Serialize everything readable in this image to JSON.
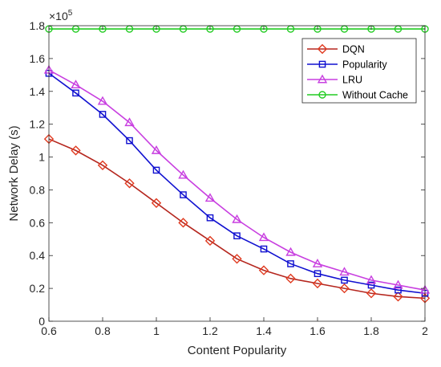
{
  "chart_data": {
    "type": "line",
    "xlabel": "Content Popularity",
    "ylabel": "Network Delay (s)",
    "y_multiplier_label": "×10",
    "y_multiplier_exponent": "5",
    "xlim": [
      0.6,
      2
    ],
    "ylim": [
      0,
      1.8
    ],
    "xticks": [
      0.6,
      0.8,
      1,
      1.2,
      1.4,
      1.6,
      1.8,
      2
    ],
    "xtick_labels": [
      "0.6",
      "0.8",
      "1",
      "1.2",
      "1.4",
      "1.6",
      "1.8",
      "2"
    ],
    "yticks": [
      0,
      0.2,
      0.4,
      0.6,
      0.8,
      1,
      1.2,
      1.4,
      1.6,
      1.8
    ],
    "ytick_labels": [
      "0",
      "0.2",
      "0.4",
      "0.6",
      "0.8",
      "1",
      "1.2",
      "1.4",
      "1.6",
      "1.8"
    ],
    "grid": false,
    "legend_position": "top-right",
    "x": [
      0.6,
      0.7,
      0.8,
      0.9,
      1.0,
      1.1,
      1.2,
      1.3,
      1.4,
      1.5,
      1.6,
      1.7,
      1.8,
      1.9,
      2.0
    ],
    "series": [
      {
        "name": "DQN",
        "color": "#b5261e",
        "marker_color": "#e03a1f",
        "marker": "diamond",
        "values": [
          1.11,
          1.04,
          0.95,
          0.84,
          0.72,
          0.6,
          0.49,
          0.38,
          0.31,
          0.26,
          0.23,
          0.2,
          0.17,
          0.15,
          0.14
        ]
      },
      {
        "name": "Popularity",
        "color": "#1010d0",
        "marker_color": "#1010d0",
        "marker": "square",
        "values": [
          1.51,
          1.39,
          1.26,
          1.1,
          0.92,
          0.77,
          0.63,
          0.52,
          0.44,
          0.35,
          0.29,
          0.25,
          0.22,
          0.19,
          0.17
        ]
      },
      {
        "name": "LRU",
        "color": "#c83fe0",
        "marker_color": "#c83fe0",
        "marker": "triangle",
        "values": [
          1.53,
          1.44,
          1.34,
          1.21,
          1.04,
          0.89,
          0.75,
          0.62,
          0.51,
          0.42,
          0.35,
          0.3,
          0.25,
          0.22,
          0.19
        ]
      },
      {
        "name": "Without Cache",
        "color": "#22cc22",
        "marker_color": "#22cc22",
        "marker": "circle",
        "values": [
          1.78,
          1.78,
          1.78,
          1.78,
          1.78,
          1.78,
          1.78,
          1.78,
          1.78,
          1.78,
          1.78,
          1.78,
          1.78,
          1.78,
          1.78
        ]
      }
    ]
  }
}
